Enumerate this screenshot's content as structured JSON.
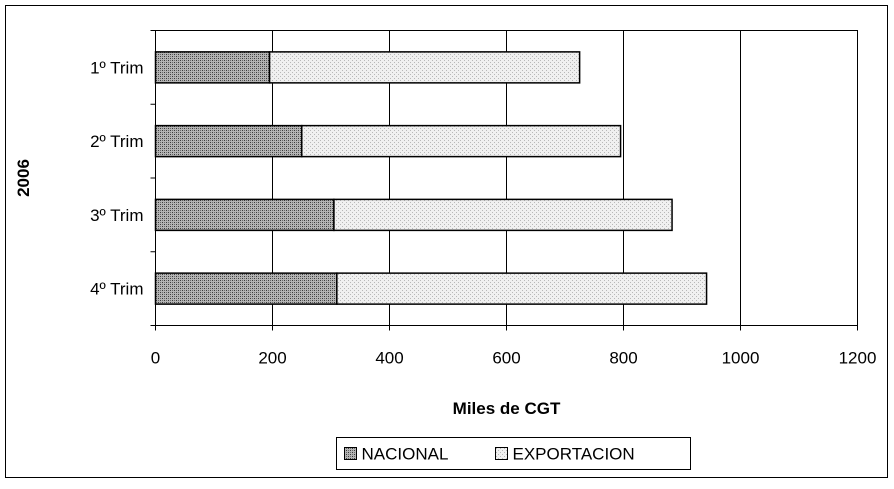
{
  "chart_data": {
    "type": "bar",
    "orientation": "horizontal",
    "stacked": true,
    "group_label": "2006",
    "categories": [
      "1º Trim",
      "2º Trim",
      "3º Trim",
      "4º Trim"
    ],
    "series": [
      {
        "name": "NACIONAL",
        "values": [
          195,
          250,
          305,
          310
        ],
        "pattern": "dark-dots",
        "color": "#8a8a8a"
      },
      {
        "name": "EXPORTACION",
        "values": [
          530,
          545,
          578,
          632
        ],
        "pattern": "light-dots",
        "color": "#e2e2e2"
      }
    ],
    "xlabel": "Miles de CGT",
    "xlim": [
      0,
      1200
    ],
    "xticks": [
      0,
      200,
      400,
      600,
      800,
      1000,
      1200
    ],
    "xtick_labels": [
      "0",
      "200",
      "400",
      "600",
      "800",
      "1000",
      "1200"
    ],
    "grid": "vertical-major",
    "legend_position": "bottom-center"
  }
}
